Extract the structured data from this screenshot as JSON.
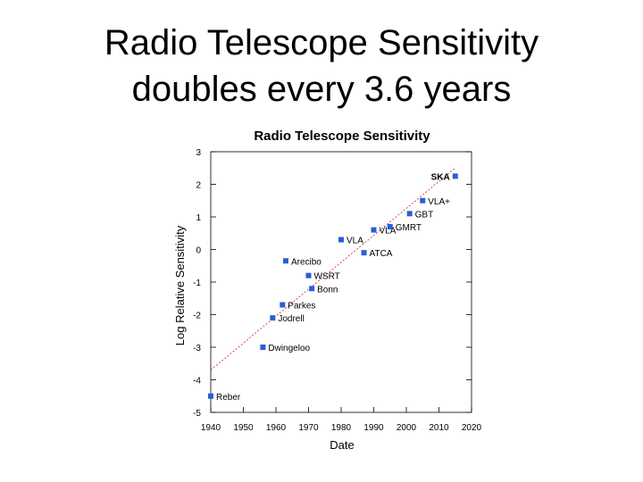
{
  "slide": {
    "title_line1": "Radio Telescope Sensitivity",
    "title_line2": "doubles every 3.6 years"
  },
  "colors": {
    "point": "#2a5fd6",
    "highlight": "#cc1111",
    "trend": "#cc2222",
    "axis": "#000000"
  },
  "chart_data": {
    "type": "scatter",
    "title": "Radio Telescope Sensitivity",
    "xlabel": "Date",
    "ylabel": "Log Relative Sensitivity",
    "xlim": [
      1940,
      2020
    ],
    "ylim": [
      -5,
      3
    ],
    "xticks": [
      1940,
      1950,
      1960,
      1970,
      1980,
      1990,
      2000,
      2010,
      2020
    ],
    "yticks": [
      3,
      2,
      1,
      0,
      -1,
      -2,
      -3,
      -4,
      -5
    ],
    "grid": false,
    "trend_line": {
      "x": [
        1940,
        2015
      ],
      "y": [
        -3.7,
        2.5
      ]
    },
    "points": [
      {
        "label": "Reber",
        "x": 1940,
        "y": -4.5,
        "highlight": false
      },
      {
        "label": "Dwingeloo",
        "x": 1956,
        "y": -3.0,
        "highlight": false
      },
      {
        "label": "Jodrell",
        "x": 1959,
        "y": -2.1,
        "highlight": false
      },
      {
        "label": "Parkes",
        "x": 1962,
        "y": -1.7,
        "highlight": false
      },
      {
        "label": "Arecibo",
        "x": 1963,
        "y": -0.35,
        "highlight": false
      },
      {
        "label": "WSRT",
        "x": 1970,
        "y": -0.8,
        "highlight": false
      },
      {
        "label": "Bonn",
        "x": 1971,
        "y": -1.2,
        "highlight": false
      },
      {
        "label": "VLA",
        "x": 1980,
        "y": 0.3,
        "highlight": false
      },
      {
        "label": "ATCA",
        "x": 1987,
        "y": -0.1,
        "highlight": false
      },
      {
        "label": "VLA",
        "x": 1990,
        "y": 0.6,
        "highlight": false
      },
      {
        "label": "GMRT",
        "x": 1995,
        "y": 0.7,
        "highlight": false
      },
      {
        "label": "GBT",
        "x": 2001,
        "y": 1.1,
        "highlight": false
      },
      {
        "label": "VLA+",
        "x": 2005,
        "y": 1.5,
        "highlight": false
      },
      {
        "label": "SKA",
        "x": 2015,
        "y": 2.25,
        "highlight": true
      }
    ]
  }
}
